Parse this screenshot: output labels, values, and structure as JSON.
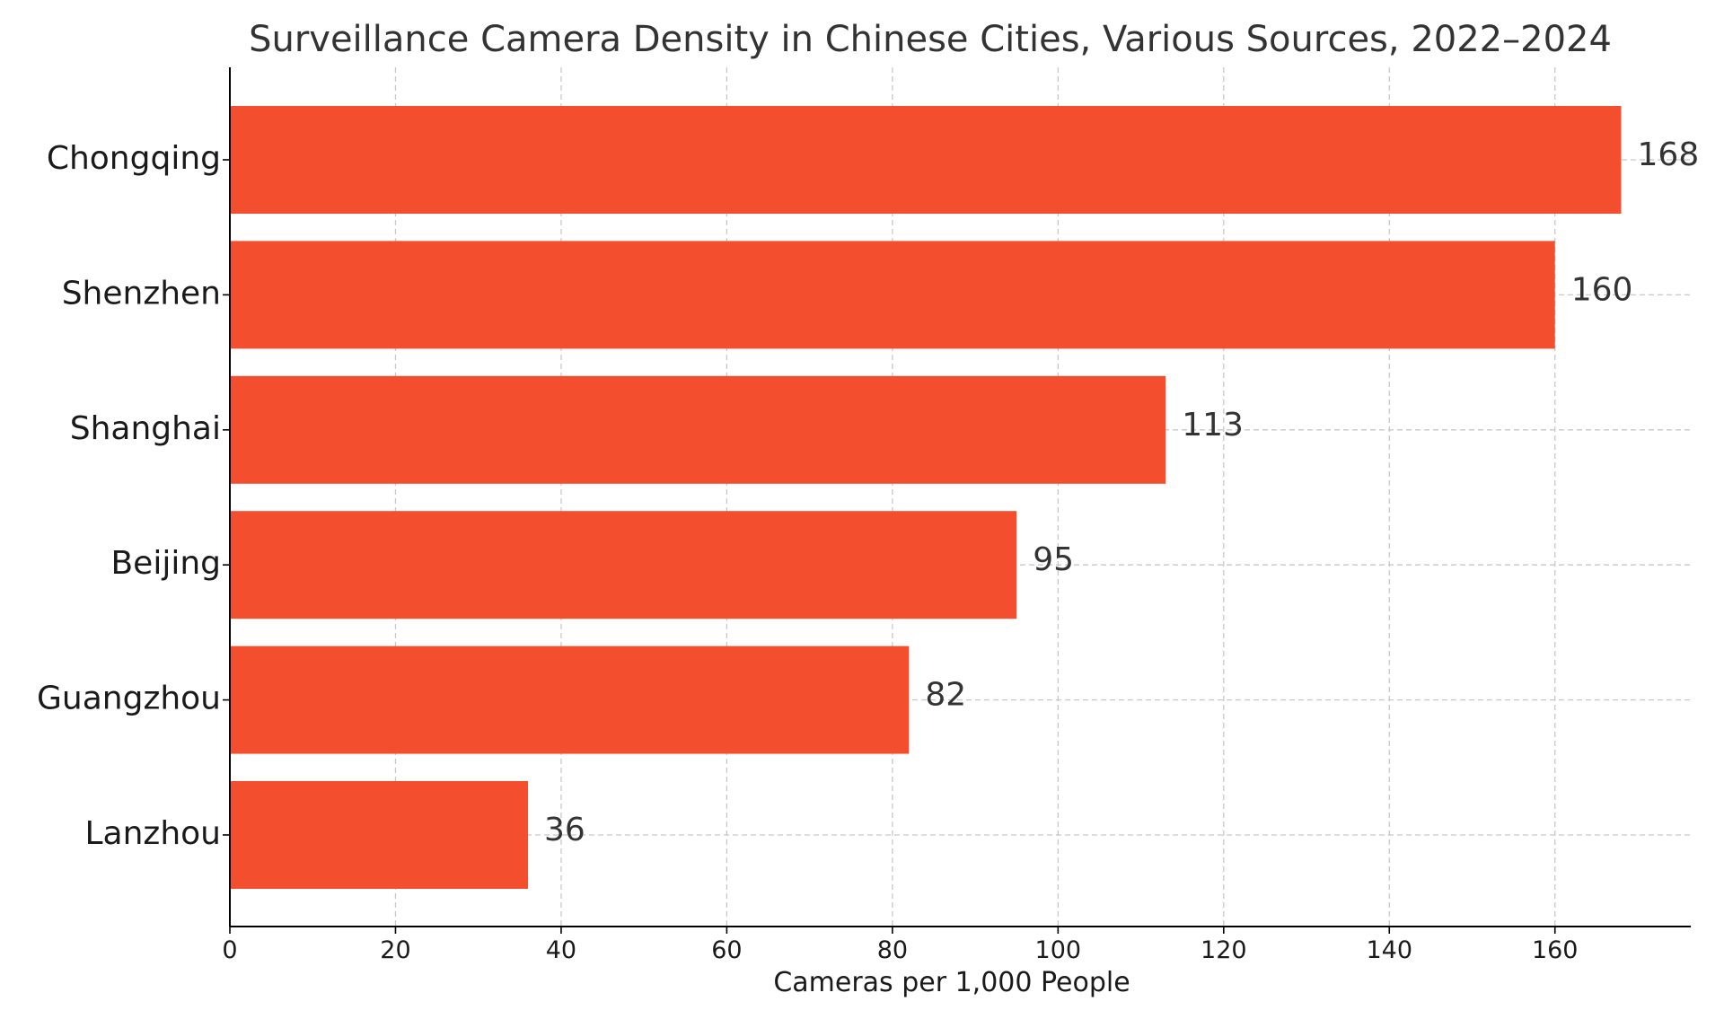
{
  "chart_data": {
    "type": "bar",
    "orientation": "horizontal",
    "title": "Surveillance Camera Density in Chinese Cities, Various Sources, 2022–2024",
    "xlabel": "Cameras per 1,000 People",
    "ylabel": "",
    "categories": [
      "Chongqing",
      "Shenzhen",
      "Shanghai",
      "Beijing",
      "Guangzhou",
      "Lanzhou"
    ],
    "values": [
      168,
      160,
      113,
      95,
      82,
      36
    ],
    "value_labels": [
      "168",
      "160",
      "113",
      "95",
      "82",
      "36"
    ],
    "x_ticks": [
      0,
      20,
      40,
      60,
      80,
      100,
      120,
      140,
      160
    ],
    "x_tick_labels": [
      "0",
      "20",
      "40",
      "60",
      "80",
      "100",
      "120",
      "140",
      "160"
    ],
    "xlim": [
      0,
      176.4
    ],
    "grid": true,
    "bar_color": "#f34f2f",
    "grid_color": "#c8c8c8",
    "text_color": "#333333"
  }
}
